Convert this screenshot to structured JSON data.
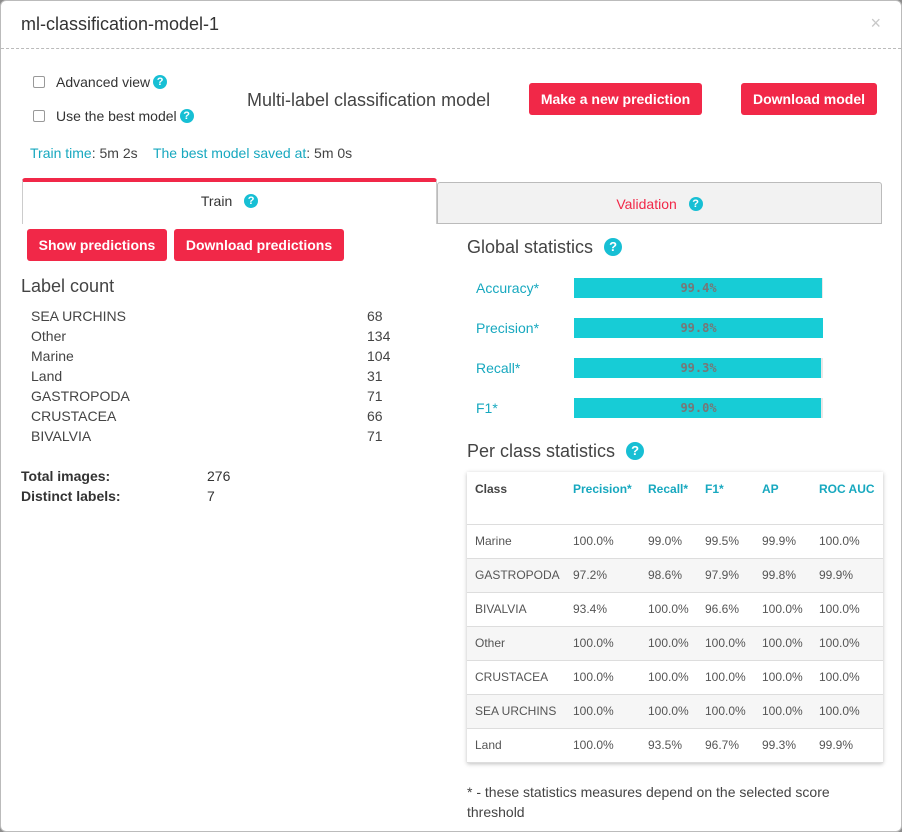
{
  "header": {
    "title": "ml-classification-model-1",
    "close_glyph": "×"
  },
  "options": {
    "advanced_view_label": "Advanced view",
    "use_best_model_label": "Use the best model",
    "help_glyph": "?"
  },
  "model_type": "Multi-label classification model",
  "buttons": {
    "new_prediction": "Make a new prediction",
    "download_model": "Download model",
    "show_predictions": "Show predictions",
    "download_predictions": "Download predictions"
  },
  "info": {
    "train_time_key": "Train time",
    "train_time_value": "5m 2s",
    "best_saved_key": "The best model saved at",
    "best_saved_value": "5m 0s",
    "sep": ": "
  },
  "tabs": {
    "train": "Train",
    "validation": "Validation"
  },
  "label_count": {
    "title": "Label count",
    "rows": [
      {
        "label": "SEA URCHINS",
        "count": "68"
      },
      {
        "label": "Other",
        "count": "134"
      },
      {
        "label": "Marine",
        "count": "104"
      },
      {
        "label": "Land",
        "count": "31"
      },
      {
        "label": "GASTROPODA",
        "count": "71"
      },
      {
        "label": "CRUSTACEA",
        "count": "66"
      },
      {
        "label": "BIVALVIA",
        "count": "71"
      }
    ]
  },
  "totals": {
    "total_images_label": "Total images:",
    "total_images_value": "276",
    "distinct_labels_label": "Distinct labels:",
    "distinct_labels_value": "7"
  },
  "global_stats": {
    "title": "Global statistics",
    "rows": [
      {
        "label": "Accuracy*",
        "value_text": "99.4%",
        "fraction": 0.994
      },
      {
        "label": "Precision*",
        "value_text": "99.8%",
        "fraction": 0.998
      },
      {
        "label": "Recall*",
        "value_text": "99.3%",
        "fraction": 0.993
      },
      {
        "label": "F1*",
        "value_text": "99.0%",
        "fraction": 0.99
      }
    ]
  },
  "per_class": {
    "title": "Per class statistics",
    "columns": [
      "Class",
      "Precision*",
      "Recall*",
      "F1*",
      "AP",
      "ROC AUC"
    ],
    "rows": [
      [
        "Marine",
        "100.0%",
        "99.0%",
        "99.5%",
        "99.9%",
        "100.0%"
      ],
      [
        "GASTROPODA",
        "97.2%",
        "98.6%",
        "97.9%",
        "99.8%",
        "99.9%"
      ],
      [
        "BIVALVIA",
        "93.4%",
        "100.0%",
        "96.6%",
        "100.0%",
        "100.0%"
      ],
      [
        "Other",
        "100.0%",
        "100.0%",
        "100.0%",
        "100.0%",
        "100.0%"
      ],
      [
        "CRUSTACEA",
        "100.0%",
        "100.0%",
        "100.0%",
        "100.0%",
        "100.0%"
      ],
      [
        "SEA URCHINS",
        "100.0%",
        "100.0%",
        "100.0%",
        "100.0%",
        "100.0%"
      ],
      [
        "Land",
        "100.0%",
        "93.5%",
        "96.7%",
        "99.3%",
        "99.9%"
      ]
    ]
  },
  "footnote": "* - these statistics measures depend on the selected score threshold",
  "colors": {
    "accent": "#f12848",
    "info": "#17a8bf",
    "bar": "#17ccd6"
  }
}
